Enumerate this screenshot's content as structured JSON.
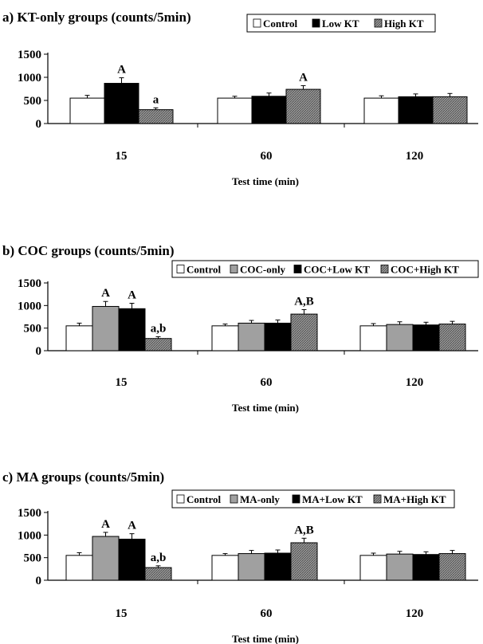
{
  "chart_data": [
    {
      "type": "bar",
      "title": "a) KT-only groups (counts/5min)",
      "xlabel": "Test time (min)",
      "ylabel": "",
      "ylim": [
        0,
        1500
      ],
      "yticks": [
        "0",
        "500",
        "1000",
        "1500"
      ],
      "categories": [
        "15",
        "60",
        "120"
      ],
      "legend_position": "top-right",
      "series": [
        {
          "name": "Control",
          "fill": "white",
          "values": [
            550,
            550,
            550
          ],
          "errors": [
            60,
            40,
            50
          ]
        },
        {
          "name": "Low KT",
          "fill": "black",
          "values": [
            870,
            590,
            580
          ],
          "errors": [
            120,
            70,
            60
          ]
        },
        {
          "name": "High KT",
          "fill": "hatch",
          "values": [
            300,
            740,
            580
          ],
          "errors": [
            40,
            80,
            70
          ]
        }
      ],
      "annotations": [
        {
          "series": 1,
          "category": 0,
          "text": "A"
        },
        {
          "series": 2,
          "category": 0,
          "text": "a"
        },
        {
          "series": 2,
          "category": 1,
          "text": "A"
        }
      ]
    },
    {
      "type": "bar",
      "title": "b) COC groups (counts/5min)",
      "xlabel": "Test time (min)",
      "ylabel": "",
      "ylim": [
        0,
        1500
      ],
      "yticks": [
        "0",
        "500",
        "1000",
        "1500"
      ],
      "categories": [
        "15",
        "60",
        "120"
      ],
      "legend_position": "top-right",
      "series": [
        {
          "name": "Control",
          "fill": "white",
          "values": [
            550,
            550,
            550
          ],
          "errors": [
            60,
            40,
            50
          ]
        },
        {
          "name": "COC-only",
          "fill": "gray",
          "values": [
            980,
            610,
            580
          ],
          "errors": [
            110,
            60,
            60
          ]
        },
        {
          "name": "COC+Low KT",
          "fill": "black",
          "values": [
            930,
            610,
            570
          ],
          "errors": [
            120,
            70,
            60
          ]
        },
        {
          "name": "COC+High KT",
          "fill": "hatch",
          "values": [
            270,
            810,
            590
          ],
          "errors": [
            40,
            100,
            60
          ]
        }
      ],
      "annotations": [
        {
          "series": 1,
          "category": 0,
          "text": "A"
        },
        {
          "series": 2,
          "category": 0,
          "text": "A"
        },
        {
          "series": 3,
          "category": 0,
          "text": "a,b"
        },
        {
          "series": 3,
          "category": 1,
          "text": "A,B"
        }
      ]
    },
    {
      "type": "bar",
      "title": "c) MA groups (counts/5min)",
      "xlabel": "Test time (min)",
      "ylabel": "",
      "ylim": [
        0,
        1500
      ],
      "yticks": [
        "0",
        "500",
        "1000",
        "1500"
      ],
      "categories": [
        "15",
        "60",
        "120"
      ],
      "legend_position": "top-right",
      "series": [
        {
          "name": "Control",
          "fill": "white",
          "values": [
            550,
            550,
            550
          ],
          "errors": [
            60,
            40,
            50
          ]
        },
        {
          "name": "MA-only",
          "fill": "gray",
          "values": [
            970,
            590,
            580
          ],
          "errors": [
            90,
            70,
            60
          ]
        },
        {
          "name": "MA+Low KT",
          "fill": "black",
          "values": [
            910,
            600,
            570
          ],
          "errors": [
            120,
            70,
            60
          ]
        },
        {
          "name": "MA+High KT",
          "fill": "hatch",
          "values": [
            280,
            830,
            590
          ],
          "errors": [
            40,
            100,
            70
          ]
        }
      ],
      "annotations": [
        {
          "series": 1,
          "category": 0,
          "text": "A"
        },
        {
          "series": 2,
          "category": 0,
          "text": "A"
        },
        {
          "series": 3,
          "category": 0,
          "text": "a,b"
        },
        {
          "series": 3,
          "category": 1,
          "text": "A,B"
        }
      ]
    }
  ]
}
